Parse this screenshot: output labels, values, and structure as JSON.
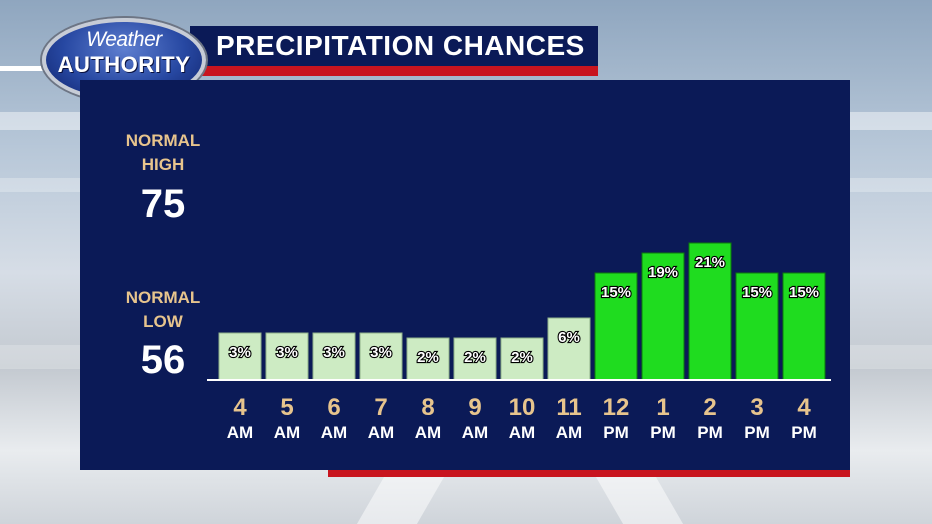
{
  "header": {
    "title": "PRECIPITATION CHANCES",
    "logo_line1": "Weather",
    "logo_line2": "AUTHORITY"
  },
  "normals": {
    "high_label_1": "NORMAL",
    "high_label_2": "HIGH",
    "high_value": "75",
    "low_label_1": "NORMAL",
    "low_label_2": "LOW",
    "low_value": "56"
  },
  "colors": {
    "panel": "#0b1a57",
    "accent_red": "#c8141e",
    "label_tan": "#e7c48d",
    "bar_low": "#cdebc3",
    "bar_high": "#1fdc1f"
  },
  "chart_data": {
    "type": "bar",
    "title": "PRECIPITATION CHANCES",
    "unit": "%",
    "categories": [
      {
        "hour": "4",
        "period": "AM"
      },
      {
        "hour": "5",
        "period": "AM"
      },
      {
        "hour": "6",
        "period": "AM"
      },
      {
        "hour": "7",
        "period": "AM"
      },
      {
        "hour": "8",
        "period": "AM"
      },
      {
        "hour": "9",
        "period": "AM"
      },
      {
        "hour": "10",
        "period": "AM"
      },
      {
        "hour": "11",
        "period": "AM"
      },
      {
        "hour": "12",
        "period": "PM"
      },
      {
        "hour": "1",
        "period": "PM"
      },
      {
        "hour": "2",
        "period": "PM"
      },
      {
        "hour": "3",
        "period": "PM"
      },
      {
        "hour": "4",
        "period": "PM"
      }
    ],
    "values": [
      3,
      3,
      3,
      3,
      2,
      2,
      2,
      6,
      15,
      19,
      21,
      15,
      15
    ],
    "labels": [
      "3%",
      "3%",
      "3%",
      "3%",
      "2%",
      "2%",
      "2%",
      "6%",
      "15%",
      "19%",
      "21%",
      "15%",
      "15%"
    ],
    "highlight_threshold": 15
  }
}
